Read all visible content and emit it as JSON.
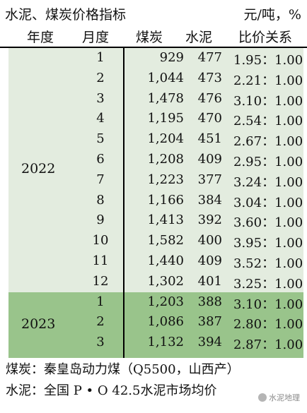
{
  "title": "水泥、煤炭价格指标",
  "unit": "元/吨，%",
  "headers": {
    "year": "年度",
    "month": "月度",
    "coal": "煤炭",
    "cement": "水泥",
    "ratio": "比价关系"
  },
  "groups": [
    {
      "year": "2022",
      "rows": [
        {
          "month": "1",
          "coal": "929",
          "cement": "477",
          "ratio": "1.95：1.00"
        },
        {
          "month": "2",
          "coal": "1,044",
          "cement": "473",
          "ratio": "2.21：1.00"
        },
        {
          "month": "3",
          "coal": "1,478",
          "cement": "476",
          "ratio": "3.10：1.00"
        },
        {
          "month": "4",
          "coal": "1,195",
          "cement": "470",
          "ratio": "2.54：1.00"
        },
        {
          "month": "5",
          "coal": "1,204",
          "cement": "451",
          "ratio": "2.67：1.00"
        },
        {
          "month": "6",
          "coal": "1,208",
          "cement": "409",
          "ratio": "2.95：1.00"
        },
        {
          "month": "7",
          "coal": "1,223",
          "cement": "377",
          "ratio": "3.24：1.00"
        },
        {
          "month": "8",
          "coal": "1,166",
          "cement": "384",
          "ratio": "3.04：1.00"
        },
        {
          "month": "9",
          "coal": "1,413",
          "cement": "392",
          "ratio": "3.60：1.00"
        },
        {
          "month": "10",
          "coal": "1,582",
          "cement": "400",
          "ratio": "3.95：1.00"
        },
        {
          "month": "11",
          "coal": "1,440",
          "cement": "409",
          "ratio": "3.52：1.00"
        },
        {
          "month": "12",
          "coal": "1,302",
          "cement": "401",
          "ratio": "3.25：1.00"
        }
      ]
    },
    {
      "year": "2023",
      "rows": [
        {
          "month": "1",
          "coal": "1,203",
          "cement": "388",
          "ratio": "3.10：1.00"
        },
        {
          "month": "2",
          "coal": "1,086",
          "cement": "387",
          "ratio": "2.80：1.00"
        },
        {
          "month": "3",
          "coal": "1,132",
          "cement": "394",
          "ratio": "2.87：1.00"
        }
      ]
    }
  ],
  "notes": {
    "coal": "煤炭：秦皇岛动力煤（Q5500，山西产）",
    "cement": "水泥：全国 P • O 42.5水泥市场均价"
  },
  "watermark": {
    "text": "水泥地理",
    "icon": "wechat-icon"
  }
}
